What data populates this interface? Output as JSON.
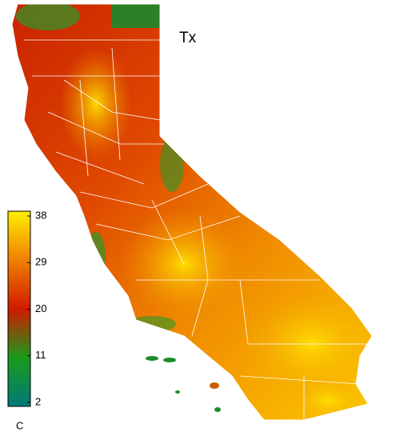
{
  "title": "Tx",
  "colorbar": {
    "lim": [
      2,
      38
    ],
    "ticks": [
      2,
      11,
      20,
      29,
      38
    ],
    "unit": "C",
    "colors": [
      "#007a7a",
      "#1a9a1a",
      "#d01a00",
      "#f08000",
      "#ffee00"
    ]
  }
}
